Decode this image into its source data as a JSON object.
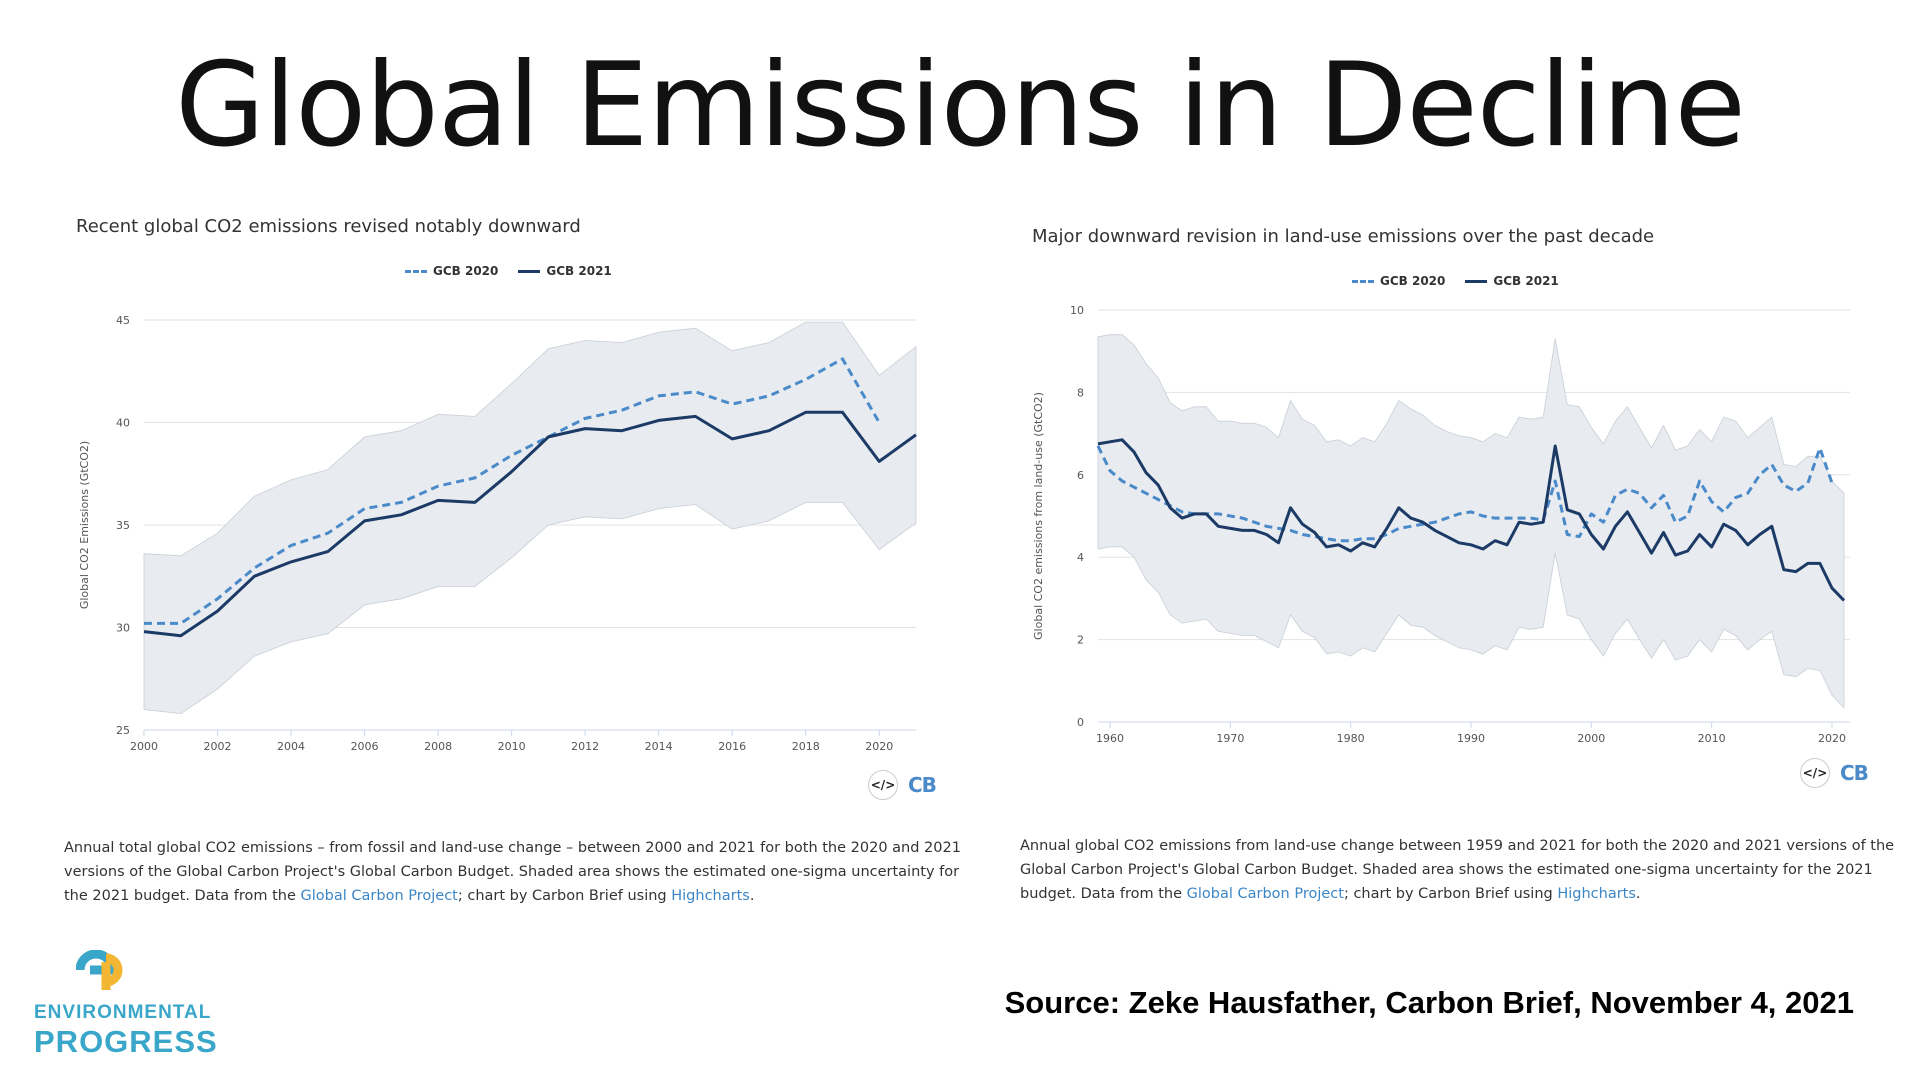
{
  "slide": {
    "title": "Global Emissions in Decline",
    "source": "Source: Zeke Hausfather, Carbon Brief, November 4, 2021"
  },
  "logo": {
    "word1": "ENVIRONMENTAL",
    "word2": "PROGRESS",
    "colors": {
      "teal": "#3aa6c9",
      "yellow": "#f2b632"
    }
  },
  "colors": {
    "gcb2020": "#4a8ac9",
    "gcb2021": "#1b3a66",
    "band": "#e8ebf0",
    "link": "#3d86c6"
  },
  "chart_data": [
    {
      "type": "line",
      "title": "Recent global CO2 emissions revised notably downward",
      "ylabel": "Global CO2 Emissions (GtCO2)",
      "xlabel": "",
      "xlim": [
        2000,
        2021
      ],
      "ylim": [
        25,
        45
      ],
      "xticks": [
        2000,
        2002,
        2004,
        2006,
        2008,
        2010,
        2012,
        2014,
        2016,
        2018,
        2020
      ],
      "yticks": [
        25,
        30,
        35,
        40,
        45
      ],
      "grid": true,
      "legend": "top-center",
      "x": [
        2000,
        2001,
        2002,
        2003,
        2004,
        2005,
        2006,
        2007,
        2008,
        2009,
        2010,
        2011,
        2012,
        2013,
        2014,
        2015,
        2016,
        2017,
        2018,
        2019,
        2020,
        2021
      ],
      "series": [
        {
          "name": "GCB 2020",
          "style": "dashed",
          "x": [
            2000,
            2001,
            2002,
            2003,
            2004,
            2005,
            2006,
            2007,
            2008,
            2009,
            2010,
            2011,
            2012,
            2013,
            2014,
            2015,
            2016,
            2017,
            2018,
            2019,
            2020
          ],
          "values": [
            30.2,
            30.2,
            31.4,
            32.9,
            34.0,
            34.6,
            35.8,
            36.1,
            36.9,
            37.3,
            38.4,
            39.3,
            40.2,
            40.6,
            41.3,
            41.5,
            40.9,
            41.3,
            42.1,
            43.1,
            40.0
          ]
        },
        {
          "name": "GCB 2021",
          "style": "solid",
          "x": [
            2000,
            2001,
            2002,
            2003,
            2004,
            2005,
            2006,
            2007,
            2008,
            2009,
            2010,
            2011,
            2012,
            2013,
            2014,
            2015,
            2016,
            2017,
            2018,
            2019,
            2020,
            2021
          ],
          "values": [
            29.8,
            29.6,
            30.8,
            32.5,
            33.2,
            33.7,
            35.2,
            35.5,
            36.2,
            36.1,
            37.6,
            39.3,
            39.7,
            39.6,
            40.1,
            40.3,
            39.2,
            39.6,
            40.5,
            40.5,
            38.1,
            39.4
          ]
        }
      ],
      "band": {
        "x": [
          2000,
          2001,
          2002,
          2003,
          2004,
          2005,
          2006,
          2007,
          2008,
          2009,
          2010,
          2011,
          2012,
          2013,
          2014,
          2015,
          2016,
          2017,
          2018,
          2019,
          2020,
          2021
        ],
        "upper": [
          33.6,
          33.5,
          34.6,
          36.4,
          37.2,
          37.7,
          39.3,
          39.6,
          40.4,
          40.3,
          41.9,
          43.6,
          44.0,
          43.9,
          44.4,
          44.6,
          43.5,
          43.9,
          44.9,
          44.9,
          42.3,
          43.7
        ],
        "lower": [
          26.0,
          25.8,
          27.0,
          28.6,
          29.3,
          29.7,
          31.1,
          31.4,
          32.0,
          32.0,
          33.4,
          35.0,
          35.4,
          35.3,
          35.8,
          36.0,
          34.8,
          35.2,
          36.1,
          36.1,
          33.8,
          35.1
        ]
      },
      "caption": {
        "text_before": "Annual total global CO2 emissions – from fossil and land-use change – between 2000 and 2021 for both the 2020 and 2021 versions of the Global Carbon Project's Global Carbon Budget. Shaded area shows the estimated one-sigma uncertainty for the 2021 budget. Data from the ",
        "link1": "Global Carbon Project",
        "text_mid": "; chart by Carbon Brief using ",
        "link2": "Highcharts",
        "text_after": "."
      },
      "brand": "CB",
      "code_icon": "</>"
    },
    {
      "type": "line",
      "title": "Major downward revision in land-use emissions over the past decade",
      "ylabel": "Global CO2 emissions from land-use (GtCO2)",
      "xlabel": "",
      "xlim": [
        1959,
        2021
      ],
      "ylim": [
        0,
        10
      ],
      "xticks": [
        1960,
        1970,
        1980,
        1990,
        2000,
        2010,
        2020
      ],
      "yticks": [
        0,
        2,
        4,
        6,
        8,
        10
      ],
      "grid": true,
      "legend": "top-center",
      "series": [
        {
          "name": "GCB 2020",
          "style": "dashed",
          "x": [
            1959,
            1960,
            1961,
            1962,
            1963,
            1964,
            1965,
            1966,
            1967,
            1968,
            1969,
            1970,
            1971,
            1972,
            1973,
            1974,
            1975,
            1976,
            1977,
            1978,
            1979,
            1980,
            1981,
            1982,
            1983,
            1984,
            1985,
            1986,
            1987,
            1988,
            1989,
            1990,
            1991,
            1992,
            1993,
            1994,
            1995,
            1996,
            1997,
            1998,
            1999,
            2000,
            2001,
            2002,
            2003,
            2004,
            2005,
            2006,
            2007,
            2008,
            2009,
            2010,
            2011,
            2012,
            2013,
            2014,
            2015,
            2016,
            2017,
            2018,
            2019,
            2020
          ],
          "values": [
            6.7,
            6.1,
            5.85,
            5.7,
            5.55,
            5.4,
            5.25,
            5.1,
            5.05,
            5.05,
            5.05,
            5.0,
            4.95,
            4.85,
            4.75,
            4.7,
            4.65,
            4.55,
            4.5,
            4.45,
            4.4,
            4.4,
            4.45,
            4.45,
            4.55,
            4.7,
            4.75,
            4.8,
            4.85,
            4.95,
            5.05,
            5.1,
            5.0,
            4.95,
            4.95,
            4.95,
            4.95,
            4.9,
            5.85,
            4.55,
            4.5,
            5.05,
            4.85,
            5.5,
            5.65,
            5.55,
            5.2,
            5.5,
            4.85,
            5.0,
            5.85,
            5.35,
            5.1,
            5.45,
            5.55,
            6.0,
            6.25,
            5.75,
            5.6,
            5.8,
            6.65,
            5.8
          ]
        },
        {
          "name": "GCB 2021",
          "style": "solid",
          "x": [
            1959,
            1960,
            1961,
            1962,
            1963,
            1964,
            1965,
            1966,
            1967,
            1968,
            1969,
            1970,
            1971,
            1972,
            1973,
            1974,
            1975,
            1976,
            1977,
            1978,
            1979,
            1980,
            1981,
            1982,
            1983,
            1984,
            1985,
            1986,
            1987,
            1988,
            1989,
            1990,
            1991,
            1992,
            1993,
            1994,
            1995,
            1996,
            1997,
            1998,
            1999,
            2000,
            2001,
            2002,
            2003,
            2004,
            2005,
            2006,
            2007,
            2008,
            2009,
            2010,
            2011,
            2012,
            2013,
            2014,
            2015,
            2016,
            2017,
            2018,
            2019,
            2020,
            2021
          ],
          "values": [
            6.75,
            6.8,
            6.85,
            6.55,
            6.05,
            5.75,
            5.2,
            4.95,
            5.05,
            5.05,
            4.75,
            4.7,
            4.65,
            4.65,
            4.55,
            4.35,
            5.2,
            4.8,
            4.6,
            4.25,
            4.3,
            4.15,
            4.35,
            4.25,
            4.7,
            5.2,
            4.95,
            4.85,
            4.65,
            4.5,
            4.35,
            4.3,
            4.2,
            4.4,
            4.3,
            4.85,
            4.8,
            4.85,
            6.7,
            5.15,
            5.05,
            4.55,
            4.2,
            4.75,
            5.1,
            4.6,
            4.1,
            4.6,
            4.05,
            4.15,
            4.55,
            4.25,
            4.8,
            4.65,
            4.3,
            4.55,
            4.75,
            3.7,
            3.65,
            3.85,
            3.85,
            3.25,
            2.95
          ]
        }
      ],
      "band": {
        "x": [
          1959,
          1960,
          1961,
          1962,
          1963,
          1964,
          1965,
          1966,
          1967,
          1968,
          1969,
          1970,
          1971,
          1972,
          1973,
          1974,
          1975,
          1976,
          1977,
          1978,
          1979,
          1980,
          1981,
          1982,
          1983,
          1984,
          1985,
          1986,
          1987,
          1988,
          1989,
          1990,
          1991,
          1992,
          1993,
          1994,
          1995,
          1996,
          1997,
          1998,
          1999,
          2000,
          2001,
          2002,
          2003,
          2004,
          2005,
          2006,
          2007,
          2008,
          2009,
          2010,
          2011,
          2012,
          2013,
          2014,
          2015,
          2016,
          2017,
          2018,
          2019,
          2020,
          2021
        ],
        "upper": [
          9.35,
          9.4,
          9.4,
          9.15,
          8.7,
          8.35,
          7.75,
          7.55,
          7.65,
          7.65,
          7.3,
          7.3,
          7.25,
          7.25,
          7.15,
          6.9,
          7.8,
          7.35,
          7.2,
          6.8,
          6.85,
          6.7,
          6.9,
          6.8,
          7.25,
          7.8,
          7.6,
          7.45,
          7.2,
          7.05,
          6.95,
          6.9,
          6.8,
          7.0,
          6.9,
          7.4,
          7.35,
          7.4,
          9.3,
          7.7,
          7.65,
          7.15,
          6.75,
          7.3,
          7.65,
          7.15,
          6.65,
          7.2,
          6.6,
          6.7,
          7.1,
          6.8,
          7.4,
          7.3,
          6.9,
          7.15,
          7.4,
          6.25,
          6.2,
          6.45,
          6.45,
          5.85,
          5.55
        ],
        "lower": [
          4.2,
          4.25,
          4.25,
          4.0,
          3.45,
          3.15,
          2.6,
          2.4,
          2.45,
          2.5,
          2.2,
          2.15,
          2.1,
          2.1,
          1.95,
          1.8,
          2.6,
          2.2,
          2.05,
          1.65,
          1.7,
          1.6,
          1.8,
          1.7,
          2.15,
          2.6,
          2.35,
          2.3,
          2.1,
          1.95,
          1.8,
          1.75,
          1.65,
          1.85,
          1.75,
          2.3,
          2.25,
          2.3,
          4.1,
          2.6,
          2.5,
          2.0,
          1.6,
          2.15,
          2.5,
          2.0,
          1.55,
          2.0,
          1.5,
          1.6,
          2.0,
          1.7,
          2.25,
          2.1,
          1.75,
          2.0,
          2.2,
          1.15,
          1.1,
          1.3,
          1.25,
          0.65,
          0.35
        ]
      },
      "caption": {
        "text_before": "Annual global CO2 emissions from land-use change between 1959 and 2021 for both the 2020 and 2021 versions of the Global Carbon Project's Global Carbon Budget. Shaded area shows the estimated one-sigma uncertainty for the 2021 budget. Data from the ",
        "link1": "Global Carbon Project",
        "text_mid": "; chart by Carbon Brief using ",
        "link2": "Highcharts",
        "text_after": "."
      },
      "brand": "CB",
      "code_icon": "</>"
    }
  ]
}
